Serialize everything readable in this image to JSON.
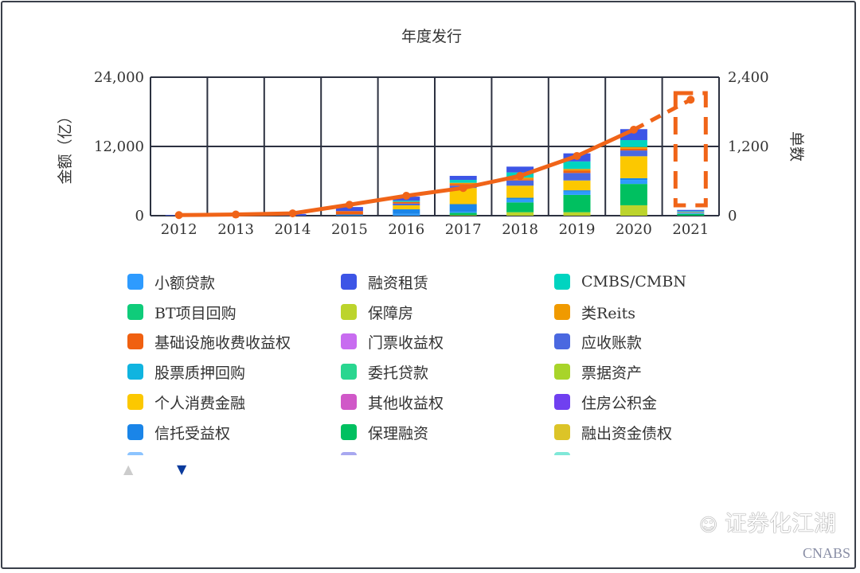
{
  "chart_data": {
    "type": "bar",
    "title": "年度发行",
    "xlabel": "",
    "ylabel": "金额（亿）",
    "y2label": "单数",
    "categories": [
      "2012",
      "2013",
      "2014",
      "2015",
      "2016",
      "2017",
      "2018",
      "2019",
      "2020",
      "2021"
    ],
    "ylim": [
      0,
      24000
    ],
    "y2lim": [
      0,
      2400
    ],
    "yticks": [
      "0",
      "12,000",
      "24,000"
    ],
    "y2ticks": [
      "0",
      "1,200",
      "2,400"
    ],
    "grid": true,
    "stacked": true,
    "series": [
      {
        "name": "保障房",
        "color": "#bcd42c",
        "values": [
          0,
          0,
          0,
          0,
          0,
          100,
          600,
          600,
          1800,
          0
        ]
      },
      {
        "name": "保理融资",
        "color": "#00c060",
        "values": [
          0,
          0,
          0,
          0,
          0,
          400,
          1700,
          3000,
          3700,
          300
        ]
      },
      {
        "name": "小额贷款",
        "color": "#2e9bff",
        "values": [
          0,
          0,
          0,
          0,
          300,
          200,
          500,
          600,
          700,
          200
        ]
      },
      {
        "name": "信托受益权",
        "color": "#1a85e8",
        "values": [
          0,
          0,
          0,
          200,
          800,
          1300,
          300,
          200,
          300,
          0
        ]
      },
      {
        "name": "个人消费金融",
        "color": "#fcc800",
        "values": [
          0,
          0,
          0,
          0,
          700,
          2800,
          2100,
          1700,
          3800,
          100
        ]
      },
      {
        "name": "应收账款",
        "color": "#4a68e0",
        "values": [
          0,
          0,
          0,
          0,
          300,
          400,
          900,
          1300,
          1000,
          100
        ]
      },
      {
        "name": "基础设施收费收益权",
        "color": "#f06010",
        "values": [
          0,
          0,
          0,
          600,
          300,
          300,
          200,
          400,
          300,
          0
        ]
      },
      {
        "name": "类Reits",
        "color": "#f09a00",
        "values": [
          0,
          0,
          0,
          0,
          0,
          200,
          300,
          300,
          300,
          0
        ]
      },
      {
        "name": "CMBS/CMBN",
        "color": "#00d4c0",
        "values": [
          0,
          0,
          0,
          0,
          200,
          500,
          900,
          1300,
          1200,
          100
        ]
      },
      {
        "name": "融资租赁",
        "color": "#3d55e6",
        "values": [
          100,
          200,
          300,
          700,
          700,
          700,
          1000,
          1400,
          1900,
          200
        ]
      }
    ],
    "line": {
      "name": "单数",
      "color": "#f06418",
      "axis": "right",
      "values": [
        10,
        20,
        40,
        190,
        345,
        480,
        690,
        1035,
        1490,
        2010
      ],
      "dashed_last_segment": true
    },
    "highlight": {
      "category": "2021",
      "style": "dashed-box",
      "color": "#f06418"
    },
    "legend_position": "bottom"
  },
  "legend": [
    {
      "label": "小额贷款",
      "color": "#2e9bff"
    },
    {
      "label": "融资租赁",
      "color": "#3d55e6"
    },
    {
      "label": "CMBS/CMBN",
      "color": "#00d4c0"
    },
    {
      "label": "BT项目回购",
      "color": "#0fcc7a"
    },
    {
      "label": "保障房",
      "color": "#bcd42c"
    },
    {
      "label": "类Reits",
      "color": "#f09a00"
    },
    {
      "label": "基础设施收费收益权",
      "color": "#f06010"
    },
    {
      "label": "门票收益权",
      "color": "#c86cf0"
    },
    {
      "label": "应收账款",
      "color": "#4a68e0"
    },
    {
      "label": "股票质押回购",
      "color": "#10b4e0"
    },
    {
      "label": "委托贷款",
      "color": "#2ad690"
    },
    {
      "label": "票据资产",
      "color": "#a8d42a"
    },
    {
      "label": "个人消费金融",
      "color": "#fcc800"
    },
    {
      "label": "其他收益权",
      "color": "#d058c8"
    },
    {
      "label": "住房公积金",
      "color": "#7040f0"
    },
    {
      "label": "信托受益权",
      "color": "#1a85e8"
    },
    {
      "label": "保理融资",
      "color": "#00c060"
    },
    {
      "label": "融出资金债权",
      "color": "#dcc428"
    }
  ],
  "legend_partial_colors": [
    "#8cc4ff",
    "#a8a8f0",
    "#80e8d8"
  ],
  "pager": {
    "up_color": "#cccccc",
    "down_color": "#0a3a9c"
  },
  "watermark": {
    "text": "证券化江湖",
    "sub": "CNABS"
  }
}
